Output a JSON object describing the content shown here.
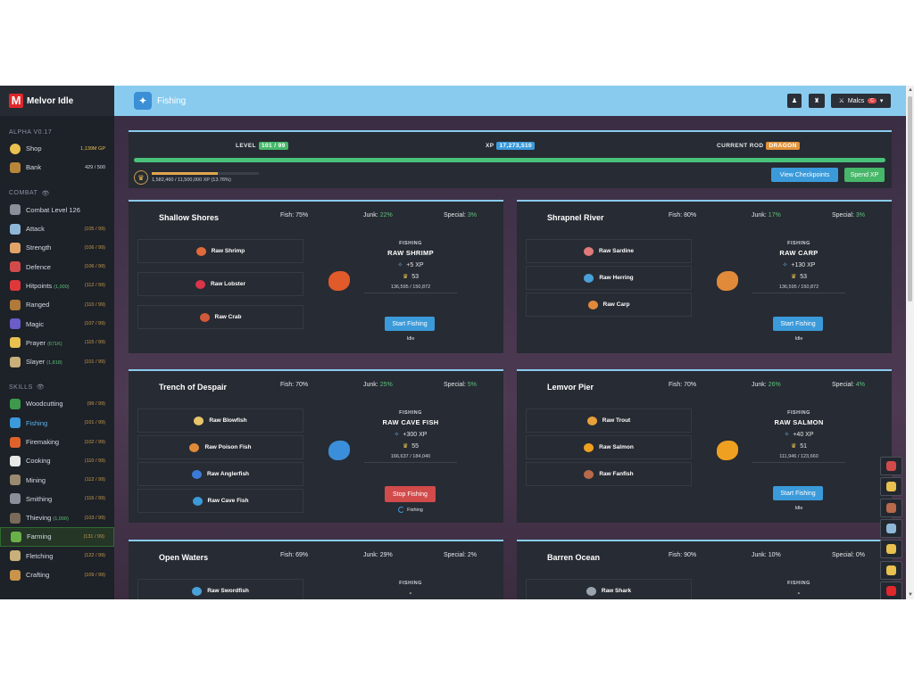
{
  "sidebar": {
    "brand": "Melvor Idle",
    "version": "ALPHA V0.17",
    "shop_label": "Shop",
    "shop_gp": "1,139M GP",
    "bank_label": "Bank",
    "bank_count": "429 / 500",
    "combat_section": "COMBAT",
    "combat_level_label": "Combat Level 126",
    "combat_skills": [
      {
        "label": "Attack",
        "level": "(105 / 99)",
        "color": "#8fb7d8"
      },
      {
        "label": "Strength",
        "level": "(106 / 99)",
        "color": "#e0a46a"
      },
      {
        "label": "Defence",
        "level": "(106 / 99)",
        "color": "#d24b4b"
      },
      {
        "label": "Hitpoints",
        "extra": "(1,000)",
        "level": "(112 / 99)",
        "color": "#e0383a"
      },
      {
        "label": "Ranged",
        "level": "(110 / 99)",
        "color": "#b07a3a"
      },
      {
        "label": "Magic",
        "level": "(107 / 99)",
        "color": "#6a5cc9"
      },
      {
        "label": "Prayer",
        "extra": "(671K)",
        "level": "(115 / 99)",
        "color": "#e8c14f"
      },
      {
        "label": "Slayer",
        "extra": "(1,818)",
        "level": "(101 / 99)",
        "color": "#c9b07a"
      }
    ],
    "skills_section": "SKILLS",
    "skills": [
      {
        "label": "Woodcutting",
        "level": "(99 / 99)",
        "color": "#3c9a4a"
      },
      {
        "label": "Fishing",
        "level": "(101 / 99)",
        "color": "#3b9ad9"
      },
      {
        "label": "Firemaking",
        "level": "(102 / 99)",
        "color": "#e0622b"
      },
      {
        "label": "Cooking",
        "level": "(110 / 99)",
        "color": "#e8e8e8"
      },
      {
        "label": "Mining",
        "level": "(112 / 99)",
        "color": "#9a8a70"
      },
      {
        "label": "Smithing",
        "level": "(116 / 99)",
        "color": "#8a8f99"
      },
      {
        "label": "Thieving",
        "extra": "(1,000)",
        "level": "(103 / 99)",
        "color": "#7a6a5a"
      },
      {
        "label": "Farming",
        "level": "(131 / 99)",
        "color": "#6ab04a"
      },
      {
        "label": "Fletching",
        "level": "(122 / 99)",
        "color": "#c9b07a"
      },
      {
        "label": "Crafting",
        "level": "(109 / 99)",
        "color": "#c9944a"
      }
    ]
  },
  "header": {
    "title": "Fishing",
    "user": "Malcs",
    "user_badge": "C"
  },
  "summary": {
    "level_label": "LEVEL",
    "level_value": "101 / 99",
    "xp_label": "XP",
    "xp_value": "17,273,510",
    "rod_label": "CURRENT ROD",
    "rod_value": "DRAGON",
    "progress_fraction": 1.0,
    "checkpoint_text": "1,582,460 / 11,500,000 XP (13.76%)",
    "checkpoint_fraction": 0.1376,
    "view_checkpoints": "View Checkpoints",
    "spend_xp": "Spend XP"
  },
  "areas": [
    {
      "name": "Shallow Shores",
      "fish": "Fish: 75%",
      "junk_label": "Junk:",
      "junk": "22%",
      "special_label": "Special:",
      "special": "3%",
      "fishes": [
        {
          "name": "Raw Shrimp",
          "color": "#e06a3a"
        },
        {
          "name": "Raw Lobster",
          "color": "#d8344a"
        },
        {
          "name": "Raw Crab",
          "color": "#d2583a"
        }
      ],
      "panel": {
        "category": "FISHING",
        "name": "RAW SHRIMP",
        "xp": "+5 XP",
        "mastery": "53",
        "mastery_xp": "136,595 / 150,872",
        "button": "Start Fishing",
        "status": "Idle",
        "big_color": "#e05a2a"
      }
    },
    {
      "name": "Shrapnel River",
      "fish": "Fish: 80%",
      "junk_label": "Junk:",
      "junk": "17%",
      "special_label": "Special:",
      "special": "3%",
      "fishes": [
        {
          "name": "Raw Sardine",
          "color": "#e07a7a"
        },
        {
          "name": "Raw Herring",
          "color": "#4aa0d8"
        },
        {
          "name": "Raw Carp",
          "color": "#e08a3a"
        }
      ],
      "panel": {
        "category": "FISHING",
        "name": "RAW CARP",
        "xp": "+130 XP",
        "mastery": "53",
        "mastery_xp": "136,595 / 150,872",
        "button": "Start Fishing",
        "status": "Idle",
        "big_color": "#e08a3a"
      }
    },
    {
      "name": "Trench of Despair",
      "fish": "Fish: 70%",
      "junk_label": "Junk:",
      "junk": "25%",
      "special_label": "Special:",
      "special": "5%",
      "fishes": [
        {
          "name": "Raw Blowfish",
          "color": "#e8c46a"
        },
        {
          "name": "Raw Poison Fish",
          "color": "#e08a3a"
        },
        {
          "name": "Raw Anglerfish",
          "color": "#3a7ad8"
        },
        {
          "name": "Raw Cave Fish",
          "color": "#3b9ad9"
        }
      ],
      "panel": {
        "category": "FISHING",
        "name": "RAW CAVE FISH",
        "xp": "+300 XP",
        "mastery": "55",
        "mastery_xp": "166,637 / 184,040",
        "button": "Stop Fishing",
        "status": "Fishing",
        "big_color": "#3b8ed9"
      }
    },
    {
      "name": "Lemvor Pier",
      "fish": "Fish: 70%",
      "junk_label": "Junk:",
      "junk": "26%",
      "special_label": "Special:",
      "special": "4%",
      "fishes": [
        {
          "name": "Raw Trout",
          "color": "#e8a03a"
        },
        {
          "name": "Raw Salmon",
          "color": "#f0a020"
        },
        {
          "name": "Raw Fanfish",
          "color": "#b86a4a"
        }
      ],
      "panel": {
        "category": "FISHING",
        "name": "RAW SALMON",
        "xp": "+40 XP",
        "mastery": "51",
        "mastery_xp": "111,946 / 123,660",
        "button": "Start Fishing",
        "status": "Idle",
        "big_color": "#f0a020"
      }
    },
    {
      "name": "Open Waters",
      "fish": "Fish: 69%",
      "junk_label": "Junk:",
      "junk": "29%",
      "special_label": "Special:",
      "special": "2%",
      "fishes": [
        {
          "name": "Raw Swordfish",
          "color": "#4aa0d8"
        }
      ],
      "panel": {
        "category": "FISHING",
        "name": "-"
      }
    },
    {
      "name": "Barren Ocean",
      "fish": "Fish: 90%",
      "junk_label": "Junk:",
      "junk": "10%",
      "special_label": "Special:",
      "special": "0%",
      "fishes": [
        {
          "name": "Raw Shark",
          "color": "#9aa4b0"
        }
      ],
      "panel": {
        "category": "FISHING",
        "name": "-"
      }
    }
  ],
  "quickbar": [
    "#d24b4b",
    "#e8c14f",
    "#b86a4a",
    "#8fb7d8",
    "#e8c14f",
    "#e8c14f",
    "#e0272b"
  ]
}
